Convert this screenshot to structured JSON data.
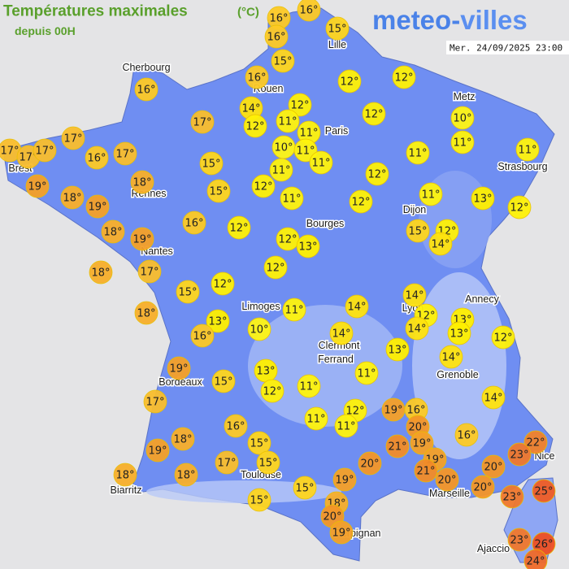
{
  "header": {
    "title": "Températures maximales",
    "unit": "(°C)",
    "subtitle": "depuis 00H",
    "brand_left": "meteo-",
    "brand_right": "villes",
    "timestamp": "Mer. 24/09/2025 23:00"
  },
  "cities": [
    "Cherbourg",
    "Lille",
    "Rouen",
    "Metz",
    "Paris",
    "Brest",
    "Strasbourg",
    "Rennes",
    "Dijon",
    "Bourges",
    "Nantes",
    "Annecy",
    "Limoges",
    "Lyon",
    "Clermont",
    "Ferrand",
    "Grenoble",
    "Bordeaux",
    "Nice",
    "Toulouse",
    "Marseille",
    "Biarritz",
    "Perpignan",
    "Ajaccio"
  ],
  "readings": [
    {
      "value": 16,
      "label": "16°"
    },
    {
      "value": 16,
      "label": "16°"
    },
    {
      "value": 16,
      "label": "16°"
    },
    {
      "value": 15,
      "label": "15°"
    },
    {
      "value": 15,
      "label": "15°"
    },
    {
      "value": 16,
      "label": "16°"
    },
    {
      "value": 12,
      "label": "12°"
    },
    {
      "value": 12,
      "label": "12°"
    },
    {
      "value": 16,
      "label": "16°"
    },
    {
      "value": 14,
      "label": "14°"
    },
    {
      "value": 12,
      "label": "12°"
    },
    {
      "value": 12,
      "label": "12°"
    },
    {
      "value": 11,
      "label": "11°"
    },
    {
      "value": 11,
      "label": "11°"
    },
    {
      "value": 12,
      "label": "12°"
    },
    {
      "value": 10,
      "label": "10°"
    },
    {
      "value": 17,
      "label": "17°"
    },
    {
      "value": 17,
      "label": "17°"
    },
    {
      "value": 17,
      "label": "17°"
    },
    {
      "value": 17,
      "label": "17°"
    },
    {
      "value": 17,
      "label": "17°"
    },
    {
      "value": 16,
      "label": "16°"
    },
    {
      "value": 17,
      "label": "17°"
    },
    {
      "value": 10,
      "label": "10°"
    },
    {
      "value": 11,
      "label": "11°"
    },
    {
      "value": 11,
      "label": "11°"
    },
    {
      "value": 11,
      "label": "11°"
    },
    {
      "value": 11,
      "label": "11°"
    },
    {
      "value": 11,
      "label": "11°"
    },
    {
      "value": 15,
      "label": "15°"
    },
    {
      "value": 11,
      "label": "11°"
    },
    {
      "value": 18,
      "label": "18°"
    },
    {
      "value": 19,
      "label": "19°"
    },
    {
      "value": 15,
      "label": "15°"
    },
    {
      "value": 12,
      "label": "12°"
    },
    {
      "value": 12,
      "label": "12°"
    },
    {
      "value": 11,
      "label": "11°"
    },
    {
      "value": 12,
      "label": "12°"
    },
    {
      "value": 11,
      "label": "11°"
    },
    {
      "value": 13,
      "label": "13°"
    },
    {
      "value": 12,
      "label": "12°"
    },
    {
      "value": 18,
      "label": "18°"
    },
    {
      "value": 19,
      "label": "19°"
    },
    {
      "value": 16,
      "label": "16°"
    },
    {
      "value": 12,
      "label": "12°"
    },
    {
      "value": 18,
      "label": "18°"
    },
    {
      "value": 19,
      "label": "19°"
    },
    {
      "value": 15,
      "label": "15°"
    },
    {
      "value": 12,
      "label": "12°"
    },
    {
      "value": 14,
      "label": "14°"
    },
    {
      "value": 12,
      "label": "12°"
    },
    {
      "value": 13,
      "label": "13°"
    },
    {
      "value": 18,
      "label": "18°"
    },
    {
      "value": 17,
      "label": "17°"
    },
    {
      "value": 12,
      "label": "12°"
    },
    {
      "value": 12,
      "label": "12°"
    },
    {
      "value": 15,
      "label": "15°"
    },
    {
      "value": 14,
      "label": "14°"
    },
    {
      "value": 18,
      "label": "18°"
    },
    {
      "value": 11,
      "label": "11°"
    },
    {
      "value": 14,
      "label": "14°"
    },
    {
      "value": 12,
      "label": "12°"
    },
    {
      "value": 13,
      "label": "13°"
    },
    {
      "value": 13,
      "label": "13°"
    },
    {
      "value": 10,
      "label": "10°"
    },
    {
      "value": 14,
      "label": "14°"
    },
    {
      "value": 14,
      "label": "14°"
    },
    {
      "value": 13,
      "label": "13°"
    },
    {
      "value": 12,
      "label": "12°"
    },
    {
      "value": 16,
      "label": "16°"
    },
    {
      "value": 13,
      "label": "13°"
    },
    {
      "value": 14,
      "label": "14°"
    },
    {
      "value": 19,
      "label": "19°"
    },
    {
      "value": 13,
      "label": "13°"
    },
    {
      "value": 11,
      "label": "11°"
    },
    {
      "value": 15,
      "label": "15°"
    },
    {
      "value": 12,
      "label": "12°"
    },
    {
      "value": 11,
      "label": "11°"
    },
    {
      "value": 17,
      "label": "17°"
    },
    {
      "value": 14,
      "label": "14°"
    },
    {
      "value": 12,
      "label": "12°"
    },
    {
      "value": 19,
      "label": "19°"
    },
    {
      "value": 16,
      "label": "16°"
    },
    {
      "value": 11,
      "label": "11°"
    },
    {
      "value": 11,
      "label": "11°"
    },
    {
      "value": 16,
      "label": "16°"
    },
    {
      "value": 20,
      "label": "20°"
    },
    {
      "value": 18,
      "label": "18°"
    },
    {
      "value": 15,
      "label": "15°"
    },
    {
      "value": 21,
      "label": "21°"
    },
    {
      "value": 19,
      "label": "19°"
    },
    {
      "value": 16,
      "label": "16°"
    },
    {
      "value": 22,
      "label": "22°"
    },
    {
      "value": 19,
      "label": "19°"
    },
    {
      "value": 23,
      "label": "23°"
    },
    {
      "value": 20,
      "label": "20°"
    },
    {
      "value": 19,
      "label": "19°"
    },
    {
      "value": 17,
      "label": "17°"
    },
    {
      "value": 15,
      "label": "15°"
    },
    {
      "value": 21,
      "label": "21°"
    },
    {
      "value": 20,
      "label": "20°"
    },
    {
      "value": 18,
      "label": "18°"
    },
    {
      "value": 18,
      "label": "18°"
    },
    {
      "value": 19,
      "label": "19°"
    },
    {
      "value": 20,
      "label": "20°"
    },
    {
      "value": 20,
      "label": "20°"
    },
    {
      "value": 15,
      "label": "15°"
    },
    {
      "value": 25,
      "label": "25°"
    },
    {
      "value": 23,
      "label": "23°"
    },
    {
      "value": 15,
      "label": "15°"
    },
    {
      "value": 18,
      "label": "18°"
    },
    {
      "value": 20,
      "label": "20°"
    },
    {
      "value": 19,
      "label": "19°"
    },
    {
      "value": 23,
      "label": "23°"
    },
    {
      "value": 26,
      "label": "26°"
    },
    {
      "value": 24,
      "label": "24°"
    }
  ]
}
